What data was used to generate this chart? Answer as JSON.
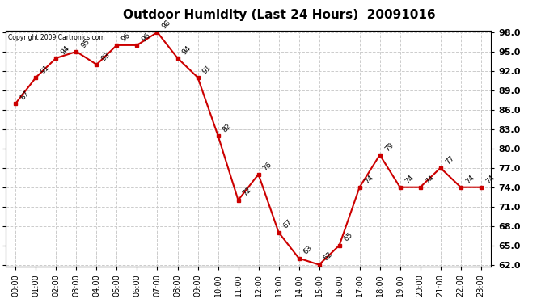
{
  "title": "Outdoor Humidity (Last 24 Hours)  20091016",
  "copyright_text": "Copyright 2009 Cartronics.com",
  "hours": [
    "00:00",
    "01:00",
    "02:00",
    "03:00",
    "04:00",
    "05:00",
    "06:00",
    "07:00",
    "08:00",
    "09:00",
    "10:00",
    "11:00",
    "12:00",
    "13:00",
    "14:00",
    "15:00",
    "16:00",
    "17:00",
    "18:00",
    "19:00",
    "20:00",
    "21:00",
    "22:00",
    "23:00"
  ],
  "values": [
    87,
    91,
    94,
    95,
    93,
    96,
    96,
    98,
    94,
    91,
    82,
    72,
    76,
    67,
    63,
    62,
    65,
    74,
    79,
    74,
    74,
    77,
    74,
    74
  ],
  "ylim_min": 62.0,
  "ylim_max": 98.0,
  "line_color": "#cc0000",
  "marker": "s",
  "marker_size": 3,
  "marker_color": "#cc0000",
  "grid_color": "#cccccc",
  "bg_color": "#ffffff",
  "title_fontsize": 11,
  "label_fontsize": 7,
  "annotation_fontsize": 6.5,
  "yticks": [
    62.0,
    65.0,
    68.0,
    71.0,
    74.0,
    77.0,
    80.0,
    83.0,
    86.0,
    89.0,
    92.0,
    95.0,
    98.0
  ]
}
